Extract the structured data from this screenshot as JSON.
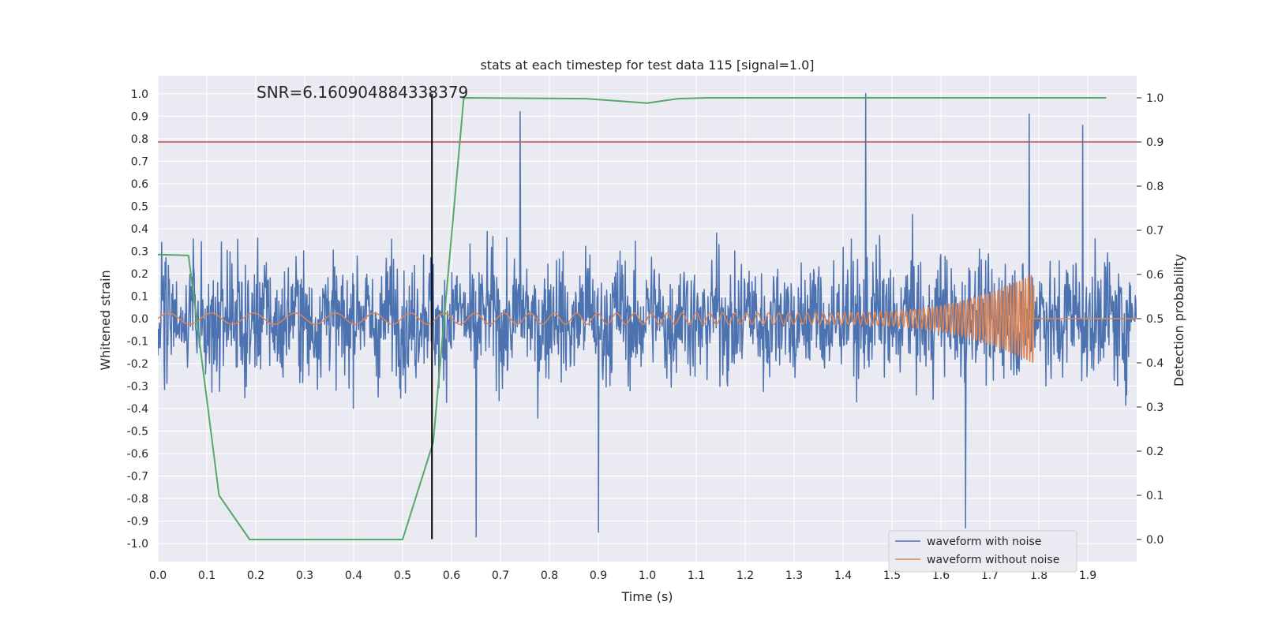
{
  "chart_data": {
    "type": "line",
    "title": "stats at each timestep for test data 115 [signal=1.0]",
    "xlabel": "Time (s)",
    "ylabel_left": "Whitened strain",
    "ylabel_right": "Detection probability",
    "xlim": [
      0.0,
      2.0
    ],
    "ylim_left": [
      -1.08,
      1.08
    ],
    "ylim_right": [
      -0.05,
      1.05
    ],
    "x_ticks": [
      "0.0",
      "0.1",
      "0.2",
      "0.3",
      "0.4",
      "0.5",
      "0.6",
      "0.7",
      "0.8",
      "0.9",
      "1.0",
      "1.1",
      "1.2",
      "1.3",
      "1.4",
      "1.5",
      "1.6",
      "1.7",
      "1.8",
      "1.9"
    ],
    "y_ticks_left": [
      "1.0",
      "0.9",
      "0.8",
      "0.7",
      "0.6",
      "0.5",
      "0.4",
      "0.3",
      "0.2",
      "0.1",
      "0.0",
      "-0.1",
      "-0.2",
      "-0.3",
      "-0.4",
      "-0.5",
      "-0.6",
      "-0.7",
      "-0.8",
      "-0.9",
      "-1.0"
    ],
    "y_ticks_right": [
      "1.0",
      "0.9",
      "0.8",
      "0.7",
      "0.6",
      "0.5",
      "0.4",
      "0.3",
      "0.2",
      "0.1",
      "0.0"
    ],
    "annotation": "SNR=6.160904884338379",
    "threshold": 0.9,
    "event_time": 0.56,
    "event_span": [
      -0.98,
      1.0
    ],
    "noise": {
      "name": "waveform with noise",
      "color": "#4c72b0",
      "duration": 2.0,
      "amplitude_range": [
        -0.97,
        1.0
      ],
      "peaks": [
        [
          0.74,
          0.92
        ],
        [
          1.446,
          1.0
        ],
        [
          1.78,
          0.91
        ],
        [
          1.89,
          0.86
        ],
        [
          0.65,
          -0.97
        ],
        [
          1.65,
          -0.93
        ],
        [
          0.9,
          -0.95
        ]
      ]
    },
    "clean": {
      "name": "waveform without noise",
      "color": "#dd8452",
      "base_amplitude": 0.025,
      "peak_amplitude": 0.2,
      "merger_time": 1.79
    },
    "probability": {
      "name": "detection probability",
      "color": "#55a868",
      "x": [
        0.0,
        0.0625,
        0.125,
        0.1875,
        0.5,
        0.5625,
        0.625,
        0.875,
        1.0,
        1.0625,
        1.125,
        1.9375
      ],
      "y": [
        0.645,
        0.643,
        0.1,
        0.0,
        0.0,
        0.22,
        1.0,
        0.998,
        0.988,
        0.998,
        1.0,
        1.0
      ]
    },
    "threshold_color": "#c44e52",
    "legend": [
      "waveform with noise",
      "waveform without noise"
    ]
  }
}
